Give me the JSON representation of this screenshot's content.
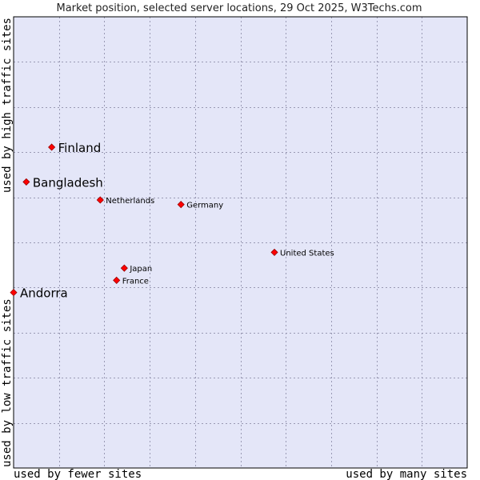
{
  "chart_data": {
    "type": "scatter",
    "title": "Market position, selected server locations, 29 Oct 2025, W3Techs.com",
    "xlabel_left": "used by fewer sites",
    "xlabel_right": "used by many sites",
    "ylabel_bottom": "used by low traffic sites",
    "ylabel_top": "used by high traffic sites",
    "xlim": [
      0,
      100
    ],
    "ylim": [
      0,
      100
    ],
    "grid": true,
    "grid_divisions": 10,
    "colors": {
      "plot_background": "#e4e6f8",
      "marker": "#ff0000",
      "marker_border": "#990000",
      "grid": "#9a9ab4",
      "frame": "#000000"
    },
    "points": [
      {
        "name": "Finland",
        "x": 8.4,
        "y": 71.1,
        "emphasis": true
      },
      {
        "name": "Bangladesh",
        "x": 2.8,
        "y": 63.4,
        "emphasis": true
      },
      {
        "name": "Netherlands",
        "x": 19.1,
        "y": 59.4,
        "emphasis": false
      },
      {
        "name": "Germany",
        "x": 36.9,
        "y": 58.4,
        "emphasis": false
      },
      {
        "name": "United States",
        "x": 57.5,
        "y": 47.8,
        "emphasis": false
      },
      {
        "name": "Japan",
        "x": 24.4,
        "y": 44.3,
        "emphasis": false
      },
      {
        "name": "France",
        "x": 22.7,
        "y": 41.6,
        "emphasis": false
      },
      {
        "name": "Andorra",
        "x": 0.0,
        "y": 38.9,
        "emphasis": true
      }
    ]
  }
}
